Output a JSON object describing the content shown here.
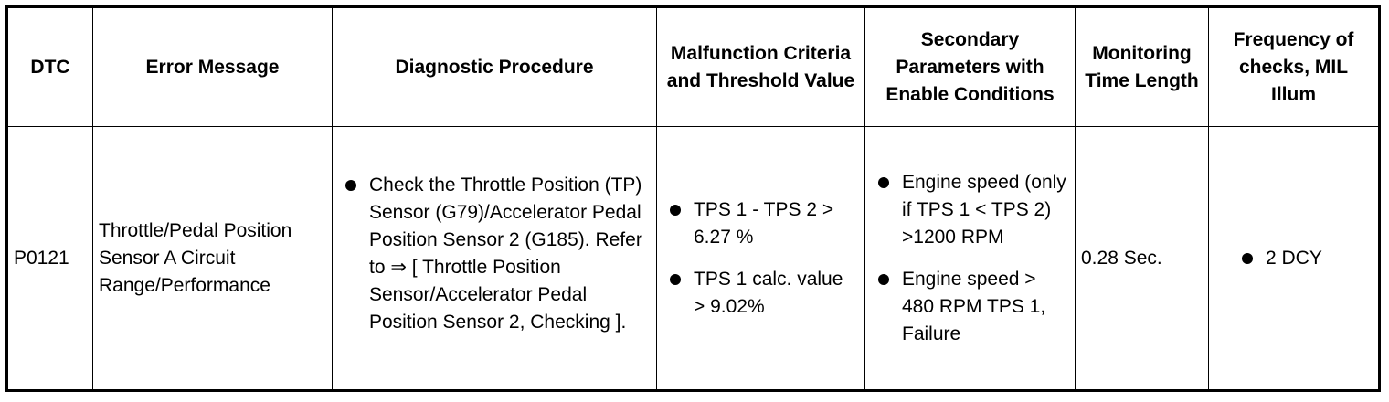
{
  "headers": {
    "dtc": "DTC",
    "error_message": "Error Message",
    "diagnostic_procedure": "Diagnostic Procedure",
    "malfunction_criteria": "Malfunction Criteria and Threshold Value",
    "secondary_parameters": "Secondary Parameters with Enable Conditions",
    "monitoring_time": "Monitoring Time Length",
    "frequency": "Frequency of checks, MIL Illum"
  },
  "row": {
    "dtc": "P0121",
    "error_message": "Throttle/Pedal Position Sensor A Circuit Range/Performance",
    "diagnostic_procedure": [
      "Check the Throttle Position (TP) Sensor (G79)/Accelerator Pedal Position Sensor 2 (G185). Refer to ⇒ [ Throttle Position Sensor/Accelerator Pedal Position Sensor 2, Checking ]."
    ],
    "malfunction_criteria": [
      "TPS 1 - TPS 2 > 6.27 %",
      "TPS 1 calc. value > 9.02%"
    ],
    "secondary_parameters": [
      "Engine speed (only if TPS 1 < TPS 2) >1200 RPM",
      "Engine speed > 480 RPM TPS 1, Failure"
    ],
    "monitoring_time": "0.28 Sec.",
    "frequency": [
      "2 DCY"
    ]
  }
}
